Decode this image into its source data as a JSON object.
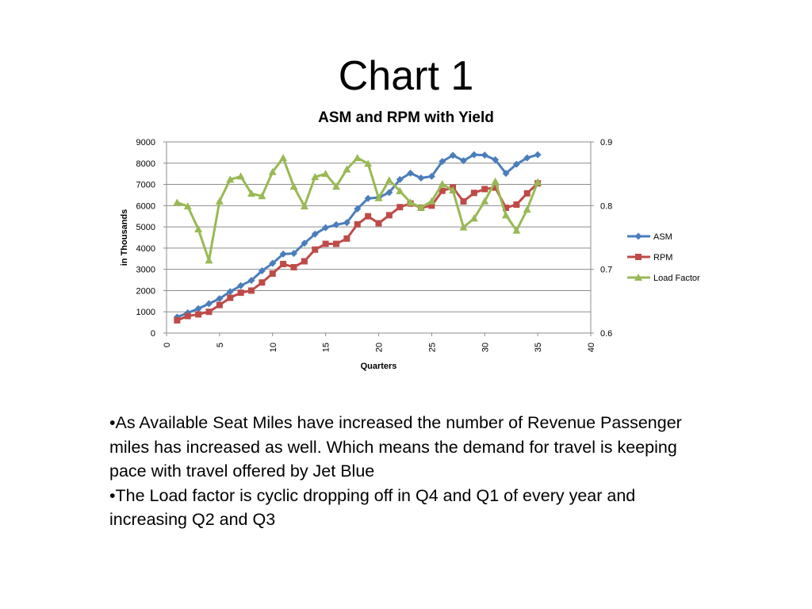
{
  "slide": {
    "title": "Chart 1"
  },
  "bullets": [
    "•As Available Seat Miles have increased the number of Revenue Passenger miles has increased as well. Which means the demand for travel is keeping pace with travel offered by Jet Blue",
    "•The Load factor is cyclic dropping off in Q4 and Q1 of every year and increasing Q2 and Q3"
  ],
  "chart_data": {
    "type": "line",
    "title": "ASM and RPM with Yield",
    "xlabel": "Quarters",
    "ylabel": "in Thousands",
    "xlim": [
      0,
      40
    ],
    "x_ticks": [
      0,
      5,
      10,
      15,
      20,
      25,
      30,
      35,
      40
    ],
    "ylim": [
      0,
      9000
    ],
    "y_ticks": [
      0,
      1000,
      2000,
      3000,
      4000,
      5000,
      6000,
      7000,
      8000,
      9000
    ],
    "y2lim": [
      0.6,
      0.9
    ],
    "y2_ticks": [
      "0.6",
      "0.7",
      "0.8",
      "0.9"
    ],
    "grid": true,
    "legend_position": "right",
    "x": [
      1,
      2,
      3,
      4,
      5,
      6,
      7,
      8,
      9,
      10,
      11,
      12,
      13,
      14,
      15,
      16,
      17,
      18,
      19,
      20,
      21,
      22,
      23,
      24,
      25,
      26,
      27,
      28,
      29,
      30,
      31,
      32,
      33,
      34,
      35
    ],
    "series": [
      {
        "name": "ASM",
        "axis": "left",
        "color": "#4a7ebb",
        "marker": "diamond",
        "values": [
          750,
          950,
          1150,
          1380,
          1620,
          1950,
          2230,
          2480,
          2930,
          3280,
          3720,
          3750,
          4230,
          4660,
          4960,
          5100,
          5200,
          5850,
          6340,
          6380,
          6620,
          7230,
          7530,
          7300,
          7380,
          8080,
          8370,
          8120,
          8400,
          8380,
          8160,
          7520,
          7950,
          8250,
          8400
        ]
      },
      {
        "name": "RPM",
        "axis": "left",
        "color": "#be4b48",
        "marker": "square",
        "values": [
          600,
          800,
          880,
          1000,
          1320,
          1660,
          1900,
          2000,
          2380,
          2800,
          3250,
          3100,
          3380,
          3930,
          4200,
          4200,
          4450,
          5120,
          5500,
          5170,
          5550,
          5930,
          6100,
          5900,
          6000,
          6700,
          6850,
          6200,
          6600,
          6780,
          6850,
          5900,
          6050,
          6580,
          7050
        ]
      },
      {
        "name": "Load Factor",
        "axis": "right",
        "color": "#98b954",
        "marker": "triangle",
        "values": [
          0.805,
          0.799,
          0.763,
          0.714,
          0.807,
          0.841,
          0.846,
          0.819,
          0.815,
          0.853,
          0.875,
          0.83,
          0.799,
          0.845,
          0.85,
          0.83,
          0.857,
          0.875,
          0.866,
          0.812,
          0.84,
          0.823,
          0.805,
          0.797,
          0.807,
          0.834,
          0.824,
          0.766,
          0.78,
          0.807,
          0.838,
          0.785,
          0.761,
          0.794,
          0.837
        ]
      }
    ]
  }
}
